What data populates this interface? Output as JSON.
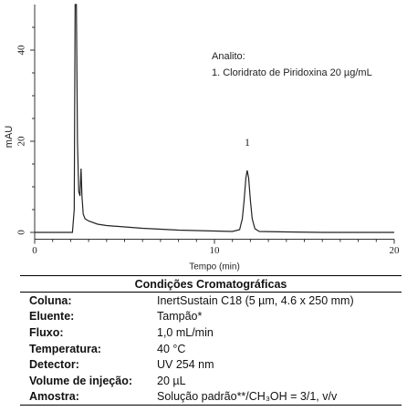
{
  "chart_data": {
    "type": "line",
    "xlabel": "Tempo (min)",
    "ylabel": "mAU",
    "annotations": [
      "Analito:",
      "1. Cloridrato de Piridoxina 20 µg/mL"
    ],
    "peak_label": "1",
    "x": [
      0,
      2.1,
      2.2,
      2.25,
      2.32,
      2.38,
      2.45,
      2.52,
      2.58,
      2.63,
      2.7,
      2.8,
      3.0,
      3.5,
      4,
      5,
      6,
      7,
      8,
      9,
      10,
      11,
      11.4,
      11.55,
      11.65,
      11.75,
      11.82,
      11.9,
      12.0,
      12.1,
      12.25,
      12.5,
      14,
      16,
      20
    ],
    "series": [
      {
        "color": "#222222",
        "values": [
          0,
          0,
          5,
          50,
          50,
          20,
          9,
          8,
          14,
          8,
          4,
          3,
          2.5,
          1.8,
          1.5,
          1.2,
          0.9,
          0.7,
          0.5,
          0.4,
          0.3,
          0.2,
          0.6,
          3,
          7,
          12,
          13.6,
          12,
          7,
          3,
          0.8,
          0.2,
          0.1,
          0,
          0
        ]
      }
    ],
    "xlim": [
      0,
      20
    ],
    "xticks": [
      0,
      10,
      20
    ],
    "xminorticks": [
      1,
      2,
      3,
      4,
      5,
      6,
      7,
      8,
      9,
      11,
      12,
      13,
      14,
      15,
      16,
      17,
      18,
      19
    ],
    "ylim": [
      -1.5,
      50
    ],
    "yticks": [
      0,
      20,
      40
    ],
    "yminorticks": [
      5,
      10,
      15,
      25,
      30,
      35,
      45
    ]
  },
  "table": {
    "title": "Condições Cromatográficas",
    "rows": [
      [
        "Coluna:",
        "InertSustain C18 (5 µm, 4.6 x 250 mm)"
      ],
      [
        "Eluente:",
        "Tampão*"
      ],
      [
        "Fluxo:",
        "1,0 mL/min"
      ],
      [
        "Temperatura:",
        "40 °C"
      ],
      [
        "Detector:",
        "UV 254 nm"
      ],
      [
        "Volume de injeção:",
        "20 µL"
      ],
      [
        "Amostra:",
        "Solução padrão**/CH₃OH = 3/1, v/v"
      ]
    ]
  }
}
